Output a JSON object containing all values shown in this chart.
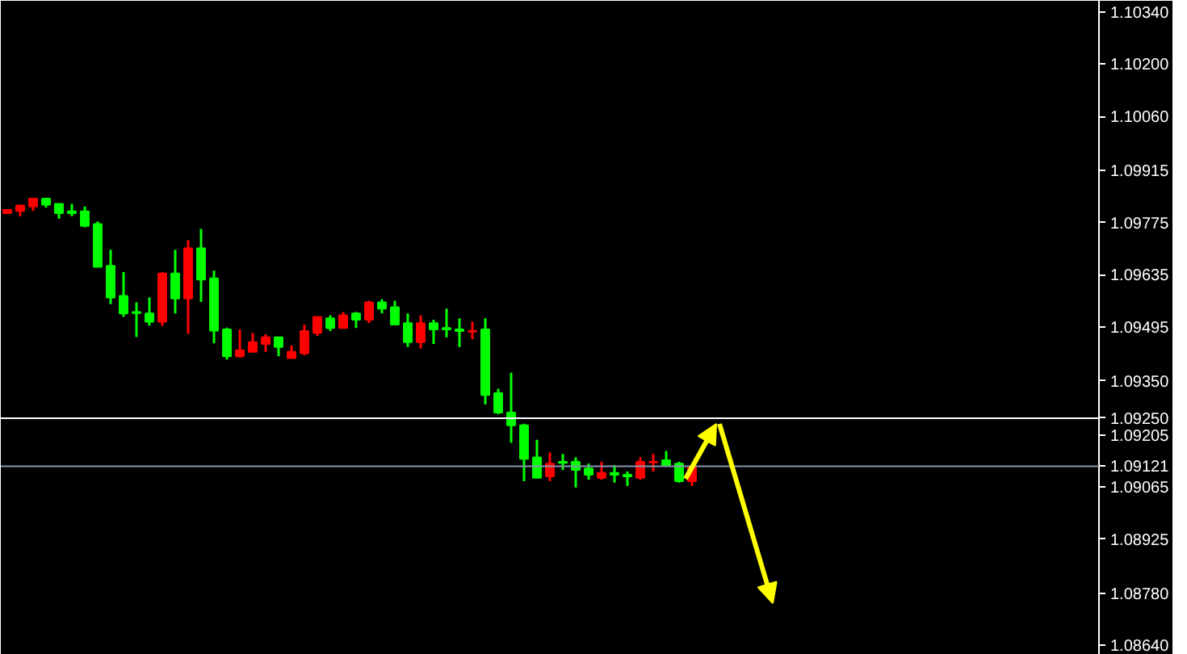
{
  "chart_data": {
    "type": "candlestick",
    "categories": [
      null,
      null,
      null,
      null,
      null,
      null,
      null,
      null,
      null,
      null,
      null,
      null,
      null,
      null,
      null,
      null,
      null,
      null,
      null,
      null,
      null,
      null,
      null,
      null,
      null,
      null,
      null,
      null,
      null,
      null,
      null,
      null,
      null,
      null,
      null,
      null,
      null,
      null,
      null,
      null,
      null,
      null,
      null,
      null,
      null,
      null,
      null,
      null,
      null,
      null,
      null,
      null,
      null,
      null,
      null,
      null,
      null,
      null,
      null,
      null,
      null,
      null,
      null,
      null,
      null,
      null,
      null,
      null,
      null,
      null,
      null,
      null,
      null,
      null,
      null,
      null,
      null,
      null,
      null,
      null,
      null,
      null,
      null,
      null,
      null
    ],
    "ohlc": [
      [
        1.098,
        1.09809,
        1.098,
        1.09809
      ],
      [
        1.09806,
        1.09823,
        1.09792,
        1.09821
      ],
      [
        1.09818,
        1.09839,
        1.09806,
        1.09839
      ],
      [
        1.09839,
        1.09841,
        1.09815,
        1.09823
      ],
      [
        1.09825,
        1.09825,
        1.09785,
        1.098
      ],
      [
        1.09805,
        1.09825,
        1.09792,
        1.098
      ],
      [
        1.09805,
        1.09818,
        1.09762,
        1.09766
      ],
      [
        1.09771,
        1.09778,
        1.09656,
        1.09656
      ],
      [
        1.09659,
        1.09702,
        1.09556,
        1.09574
      ],
      [
        1.09578,
        1.09642,
        1.09522,
        1.09531
      ],
      [
        1.09535,
        1.09561,
        1.09468,
        1.09532
      ],
      [
        1.09531,
        1.09574,
        1.09498,
        1.09509
      ],
      [
        1.09509,
        1.09642,
        1.09498,
        1.09638
      ],
      [
        1.09638,
        1.09702,
        1.09531,
        1.09571
      ],
      [
        1.09571,
        1.09728,
        1.09476,
        1.09706
      ],
      [
        1.09706,
        1.09758,
        1.09562,
        1.09622
      ],
      [
        1.09625,
        1.09646,
        1.09451,
        1.09485
      ],
      [
        1.09488,
        1.09493,
        1.09407,
        1.09416
      ],
      [
        1.09416,
        1.09488,
        1.09413,
        1.09432
      ],
      [
        1.09428,
        1.09479,
        1.09428,
        1.09454
      ],
      [
        1.09449,
        1.09475,
        1.09428,
        1.09467
      ],
      [
        1.09467,
        1.09467,
        1.09416,
        1.09441
      ],
      [
        1.09411,
        1.09445,
        1.09411,
        1.09428
      ],
      [
        1.09424,
        1.09501,
        1.09419,
        1.09484
      ],
      [
        1.09479,
        1.09522,
        1.09471,
        1.09522
      ],
      [
        1.09518,
        1.09526,
        1.09484,
        1.09492
      ],
      [
        1.09492,
        1.09535,
        1.09492,
        1.09526
      ],
      [
        1.09531,
        1.09535,
        1.09492,
        1.09514
      ],
      [
        1.09514,
        1.09565,
        1.09505,
        1.09561
      ],
      [
        1.09561,
        1.09569,
        1.09531,
        1.09544
      ],
      [
        1.09548,
        1.09565,
        1.09501,
        1.09501
      ],
      [
        1.09505,
        1.09531,
        1.09441,
        1.09454
      ],
      [
        1.09454,
        1.09526,
        1.09437,
        1.09505
      ],
      [
        1.09505,
        1.09514,
        1.09449,
        1.09488
      ],
      [
        1.09492,
        1.09544,
        1.09467,
        1.09488
      ],
      [
        1.09488,
        1.09518,
        1.09441,
        1.09484
      ],
      [
        1.09482,
        1.09509,
        1.09462,
        1.09484
      ],
      [
        1.09488,
        1.09518,
        1.09287,
        1.09312
      ],
      [
        1.09317,
        1.09329,
        1.09261,
        1.09265
      ],
      [
        1.09265,
        1.09372,
        1.09184,
        1.09231
      ],
      [
        1.09231,
        1.09235,
        1.09081,
        1.09141
      ],
      [
        1.09145,
        1.09192,
        1.0909,
        1.0909
      ],
      [
        1.09094,
        1.09158,
        1.09081,
        1.09128
      ],
      [
        1.09133,
        1.09154,
        1.09111,
        1.0913
      ],
      [
        1.09133,
        1.09145,
        1.09064,
        1.09111
      ],
      [
        1.09115,
        1.09128,
        1.09085,
        1.09098
      ],
      [
        1.0909,
        1.09133,
        1.09085,
        1.09103
      ],
      [
        1.09103,
        1.09124,
        1.09077,
        1.09098
      ],
      [
        1.09098,
        1.09107,
        1.09068,
        1.09094
      ],
      [
        1.0909,
        1.09145,
        1.09085,
        1.09133
      ],
      [
        1.09131,
        1.09154,
        1.09107,
        1.09133
      ],
      [
        1.09137,
        1.09162,
        1.0912,
        1.09124
      ],
      [
        1.09128,
        1.09133,
        1.09077,
        1.09081
      ],
      [
        1.09081,
        1.0912,
        1.09068,
        1.0912
      ],
      null,
      null,
      null,
      null,
      null,
      null,
      null,
      null,
      null,
      null,
      null,
      null,
      null,
      null,
      null,
      null,
      null,
      null,
      null,
      null,
      null,
      null,
      null,
      null,
      null,
      null,
      null,
      null,
      null,
      null,
      null
    ],
    "colors": [
      "#ff0000",
      "#ff0000",
      "#ff0000",
      "#00ff00",
      "#00ff00",
      "#00ff00",
      "#00ff00",
      "#00ff00",
      "#00ff00",
      "#00ff00",
      "#00ff00",
      "#00ff00",
      "#ff0000",
      "#00ff00",
      "#ff0000",
      "#00ff00",
      "#00ff00",
      "#00ff00",
      "#ff0000",
      "#ff0000",
      "#ff0000",
      "#00ff00",
      "#ff0000",
      "#ff0000",
      "#ff0000",
      "#00ff00",
      "#ff0000",
      "#00ff00",
      "#ff0000",
      "#00ff00",
      "#00ff00",
      "#00ff00",
      "#ff0000",
      "#00ff00",
      "#00ff00",
      "#00ff00",
      "#ff0000",
      "#00ff00",
      "#00ff00",
      "#00ff00",
      "#00ff00",
      "#00ff00",
      "#ff0000",
      "#00ff00",
      "#00ff00",
      "#00ff00",
      "#ff0000",
      "#00ff00",
      "#00ff00",
      "#ff0000",
      "#ff0000",
      "#00ff00",
      "#00ff00",
      "#ff0000",
      null,
      null,
      null,
      null,
      null,
      null,
      null,
      null,
      null,
      null,
      null,
      null,
      null,
      null,
      null,
      null,
      null,
      null,
      null,
      null,
      null,
      null,
      null,
      null,
      null,
      null,
      null,
      null,
      null,
      null,
      null
    ],
    "ylim": [
      1.08615,
      1.1037
    ],
    "yticks": [
      {
        "value": 1.1034,
        "label": "1.10340"
      },
      {
        "value": 1.102,
        "label": "1.10200"
      },
      {
        "value": 1.1006,
        "label": "1.10060"
      },
      {
        "value": 1.09915,
        "label": "1.09915"
      },
      {
        "value": 1.09775,
        "label": "1.09775"
      },
      {
        "value": 1.09635,
        "label": "1.09635"
      },
      {
        "value": 1.09495,
        "label": "1.09495"
      },
      {
        "value": 1.0935,
        "label": "1.09350"
      },
      {
        "value": 1.09205,
        "label": "1.09205"
      },
      {
        "value": 1.09065,
        "label": "1.09065"
      },
      {
        "value": 1.08925,
        "label": "1.08925"
      },
      {
        "value": 1.0878,
        "label": "1.08780"
      },
      {
        "value": 1.0864,
        "label": "1.08640"
      }
    ],
    "ref_lines": [
      {
        "axis": "y",
        "value": 1.0925,
        "label": "1.09250",
        "color": "#ffffff"
      },
      {
        "axis": "y",
        "value": 1.09121,
        "label": "1.09121",
        "color": "#8896b0"
      }
    ],
    "grid": false,
    "tick_labels": "y"
  }
}
